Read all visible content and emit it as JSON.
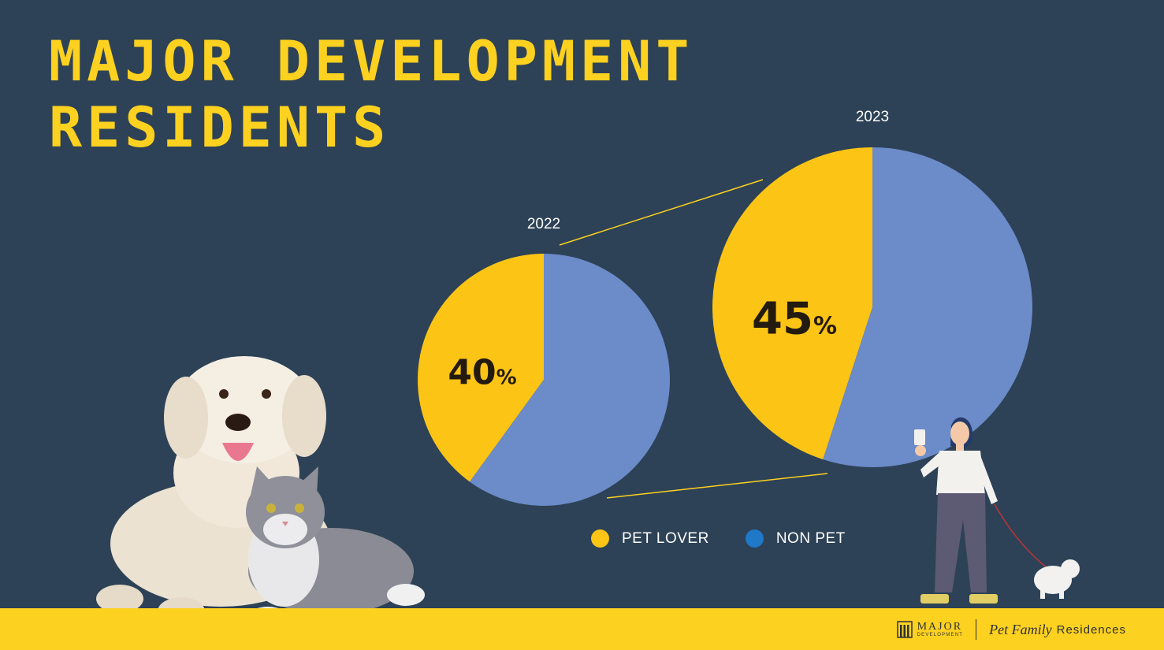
{
  "title": {
    "line1": "MAJOR DEVELOPMENT",
    "line2": "RESIDENTS"
  },
  "colors": {
    "background": "#2d4256",
    "pet_lover": "#fcc414",
    "non_pet": "#6b8bc9",
    "legend_non_pet_dot": "#1f78c8",
    "accent": "#fdd11f"
  },
  "chart_data": [
    {
      "type": "pie",
      "label": "2022",
      "categories": [
        "PET LOVER",
        "NON PET"
      ],
      "values": [
        40,
        60
      ],
      "data_labels": [
        "40",
        ""
      ]
    },
    {
      "type": "pie",
      "label": "2023",
      "categories": [
        "PET LOVER",
        "NON PET"
      ],
      "values": [
        45,
        55
      ],
      "data_labels": [
        "45",
        ""
      ]
    }
  ],
  "legend": {
    "placement": "bottom",
    "items": [
      {
        "label": "PET LOVER"
      },
      {
        "label": "NON PET"
      }
    ]
  },
  "percent_sign": "%",
  "footer": {
    "brand_major": "MAJOR",
    "brand_development": "DEVELOPMENT",
    "brand_pet": "Pet Family",
    "brand_residences": "Residences"
  },
  "icons": [
    "dog-cat-photo",
    "woman-walking-dog-illustration",
    "building-logo-icon"
  ]
}
